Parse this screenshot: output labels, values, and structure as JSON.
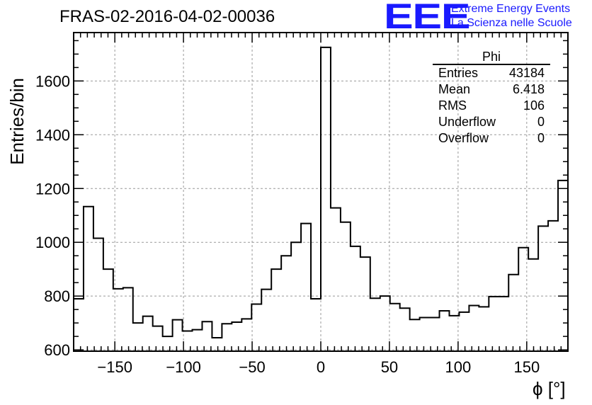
{
  "title": "FRAS-02-2016-04-02-00036",
  "logo": {
    "mark": "EEE",
    "line1": "Extreme Energy Events",
    "line2": "La Scienza nelle Scuole",
    "color": "#1a1aff"
  },
  "stats_box": {
    "name": "Phi",
    "rows": [
      {
        "label": "Entries",
        "value": "43184"
      },
      {
        "label": "Mean",
        "value": "6.418"
      },
      {
        "label": "RMS",
        "value": "106"
      },
      {
        "label": "Underflow",
        "value": "0"
      },
      {
        "label": "Overflow",
        "value": "0"
      }
    ]
  },
  "chart_data": {
    "type": "bar",
    "style": "step-histogram",
    "xlabel": "ϕ [°]",
    "ylabel": "Entries/bin",
    "xlim": [
      -180,
      180
    ],
    "ylim": [
      595,
      1780
    ],
    "bin_width": 7.2,
    "grid": true,
    "xticks": [
      -150,
      -100,
      -50,
      0,
      50,
      100,
      150
    ],
    "yticks": [
      600,
      800,
      1000,
      1200,
      1400,
      1600
    ],
    "values": [
      790,
      1133,
      1015,
      900,
      827,
      831,
      700,
      725,
      688,
      650,
      712,
      670,
      675,
      705,
      645,
      697,
      703,
      715,
      770,
      825,
      900,
      950,
      1000,
      1070,
      790,
      1725,
      1128,
      1075,
      985,
      945,
      792,
      800,
      772,
      755,
      713,
      720,
      720,
      745,
      727,
      740,
      765,
      760,
      798,
      798,
      880,
      980,
      938,
      1060,
      1080,
      1230
    ]
  }
}
